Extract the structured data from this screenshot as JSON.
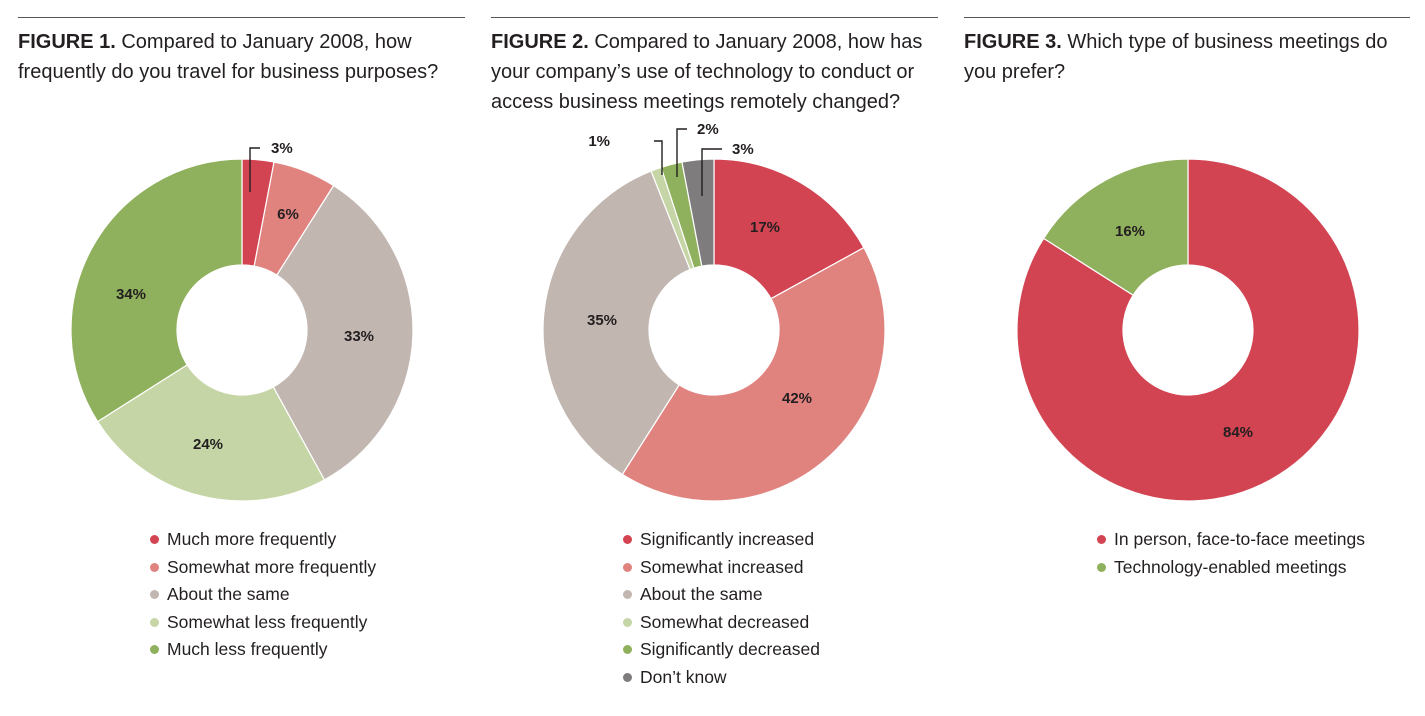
{
  "colors": {
    "red": "#d24452",
    "pink": "#e0837f",
    "taupe": "#c2b6b1",
    "light_green": "#c5d5a5",
    "green": "#8fb05c",
    "gray": "#7f7c7e"
  },
  "chart_data": [
    {
      "type": "pie",
      "donut": true,
      "figure_label": "FIGURE 1.",
      "title": "Compared to January 2008, how frequently do you travel for business purposes?",
      "categories": [
        "Much more frequently",
        "Somewhat more frequently",
        "About the same",
        "Somewhat less frequently",
        "Much less frequently"
      ],
      "values": [
        3,
        6,
        33,
        24,
        34
      ],
      "labels": [
        "3%",
        "6%",
        "33%",
        "24%",
        "34%"
      ],
      "colors": [
        "#d24452",
        "#e0837f",
        "#c2b6b1",
        "#c5d5a5",
        "#8fb05c"
      ],
      "callouts": [
        0
      ],
      "legend_position": "bottom"
    },
    {
      "type": "pie",
      "donut": true,
      "figure_label": "FIGURE 2.",
      "title": "Compared to January 2008, how has your company’s use of technology to conduct or access business meetings remotely changed?",
      "categories": [
        "Significantly increased",
        "Somewhat increased",
        "About the same",
        "Somewhat decreased",
        "Significantly decreased",
        "Don’t know"
      ],
      "values": [
        17,
        42,
        35,
        1,
        2,
        3
      ],
      "labels": [
        "17%",
        "42%",
        "35%",
        "1%",
        "2%",
        "3%"
      ],
      "colors": [
        "#d24452",
        "#e0837f",
        "#c2b6b1",
        "#c5d5a5",
        "#8fb05c",
        "#7f7c7e"
      ],
      "callouts": [
        3,
        4,
        5
      ],
      "legend_position": "bottom"
    },
    {
      "type": "pie",
      "donut": true,
      "figure_label": "FIGURE 3.",
      "title": "Which type of business meetings do you prefer?",
      "categories": [
        "In person, face-to-face meetings",
        "Technology-enabled meetings"
      ],
      "values": [
        84,
        16
      ],
      "labels": [
        "84%",
        "16%"
      ],
      "colors": [
        "#d24452",
        "#8fb05c"
      ],
      "callouts": [],
      "legend_position": "bottom"
    }
  ]
}
